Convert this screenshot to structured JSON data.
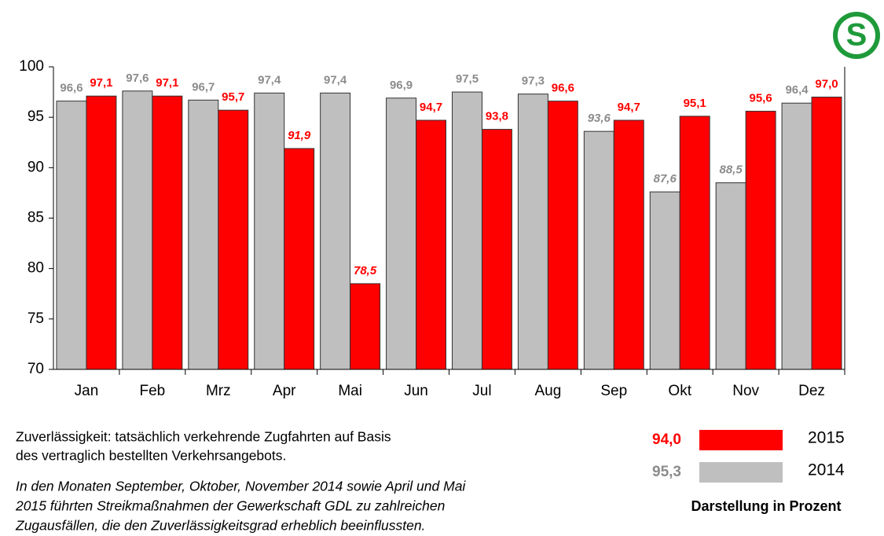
{
  "chart_data": {
    "type": "bar",
    "logo": "S",
    "categories": [
      "Jan",
      "Feb",
      "Mrz",
      "Apr",
      "Mai",
      "Jun",
      "Jul",
      "Aug",
      "Sep",
      "Okt",
      "Nov",
      "Dez"
    ],
    "series": [
      {
        "name": "2014",
        "color": "#bfbfbf",
        "label_color": "#8c8c8c",
        "values": [
          96.6,
          97.6,
          96.7,
          97.4,
          97.4,
          96.9,
          97.5,
          97.3,
          93.6,
          87.6,
          88.5,
          96.4
        ],
        "value_labels": [
          "96,6",
          "97,6",
          "96,7",
          "97,4",
          "97,4",
          "96,9",
          "97,5",
          "97,3",
          "93,6",
          "87,6",
          "88,5",
          "96,4"
        ],
        "italic": [
          false,
          false,
          false,
          false,
          false,
          false,
          false,
          false,
          true,
          true,
          true,
          false
        ],
        "average": 95.3,
        "average_label": "95,3"
      },
      {
        "name": "2015",
        "color": "#ff0000",
        "label_color": "#ff0000",
        "values": [
          97.1,
          97.1,
          95.7,
          91.9,
          78.5,
          94.7,
          93.8,
          96.6,
          94.7,
          95.1,
          95.6,
          97.0
        ],
        "value_labels": [
          "97,1",
          "97,1",
          "95,7",
          "91,9",
          "78,5",
          "94,7",
          "93,8",
          "96,6",
          "94,7",
          "95,1",
          "95,6",
          "97,0"
        ],
        "italic": [
          false,
          false,
          false,
          true,
          true,
          false,
          false,
          false,
          false,
          false,
          false,
          false
        ],
        "average": 94.0,
        "average_label": "94,0"
      }
    ],
    "ylim": [
      70,
      100
    ],
    "yticks": [
      70,
      75,
      80,
      85,
      90,
      95,
      100
    ],
    "grid": false,
    "note": [
      "Zuverlässigkeit: tatsächlich verkehrende Zugfahrten auf Basis",
      "des vertraglich bestellten Verkehrsangebots."
    ],
    "note_italic": [
      "In den Monaten September, Oktober, November 2014 sowie April und Mai",
      "2015 führten Streikmaßnahmen der Gewerkschaft GDL zu zahlreichen",
      "Zugausfällen, die den Zuverlässigkeitsgrad erheblich beeinflussten."
    ],
    "unit_note": "Darstellung in Prozent"
  }
}
